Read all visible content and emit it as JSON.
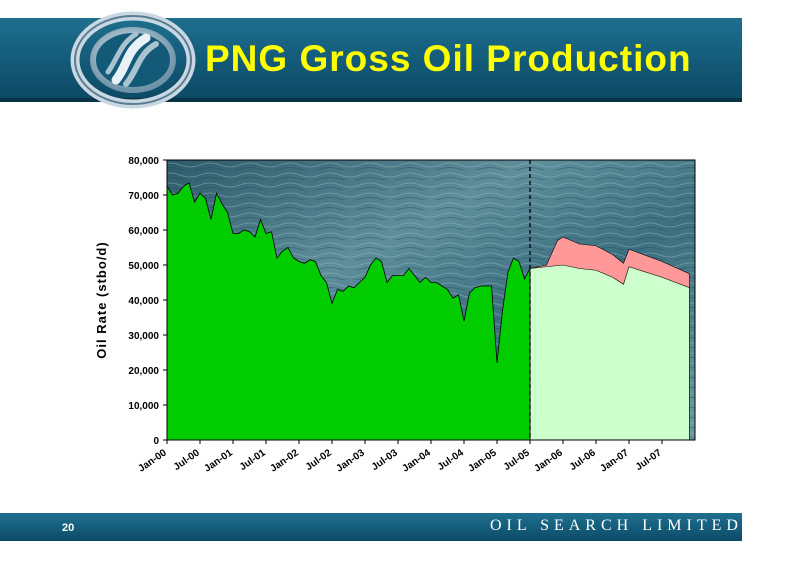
{
  "header": {
    "title": "PNG Gross Oil Production"
  },
  "footer": {
    "page_number": "20",
    "company": "OIL SEARCH LIMITED"
  },
  "colors": {
    "header_bg": "#135a78",
    "title": "#ffff00",
    "actual_fill": "#00cc00",
    "forecast_fill": "#ccffcc",
    "forecast_upside_fill": "#ff9999"
  },
  "chart_data": {
    "type": "area",
    "title": "",
    "xlabel": "",
    "ylabel": "Oil Rate (stbo/d)",
    "ylim": [
      0,
      80000
    ],
    "yticks": [
      0,
      10000,
      20000,
      30000,
      40000,
      50000,
      60000,
      70000,
      80000
    ],
    "ytick_labels": [
      "0",
      "10,000",
      "20,000",
      "30,000",
      "40,000",
      "50,000",
      "60,000",
      "70,000",
      "80,000"
    ],
    "xlim": [
      "Jan-00",
      "Dec-07"
    ],
    "xtick_labels": [
      "Jan-00",
      "Jul-00",
      "Jan-01",
      "Jul-01",
      "Jan-02",
      "Jul-02",
      "Jan-03",
      "Jul-03",
      "Jan-04",
      "Jul-04",
      "Jan-05",
      "Jul-05",
      "Jan-06",
      "Jul-06",
      "Jan-07",
      "Jul-07"
    ],
    "divider_at": "Jul-05",
    "background": "ocean-texture",
    "series": [
      {
        "kind": "actual",
        "color": "#00cc00",
        "x": [
          "Jan-00",
          "Feb-00",
          "Mar-00",
          "Apr-00",
          "May-00",
          "Jun-00",
          "Jul-00",
          "Aug-00",
          "Sep-00",
          "Oct-00",
          "Nov-00",
          "Dec-00",
          "Jan-01",
          "Feb-01",
          "Mar-01",
          "Apr-01",
          "May-01",
          "Jun-01",
          "Jul-01",
          "Aug-01",
          "Sep-01",
          "Oct-01",
          "Nov-01",
          "Dec-01",
          "Jan-02",
          "Feb-02",
          "Mar-02",
          "Apr-02",
          "May-02",
          "Jun-02",
          "Jul-02",
          "Aug-02",
          "Sep-02",
          "Oct-02",
          "Nov-02",
          "Dec-02",
          "Jan-03",
          "Feb-03",
          "Mar-03",
          "Apr-03",
          "May-03",
          "Jun-03",
          "Jul-03",
          "Aug-03",
          "Sep-03",
          "Oct-03",
          "Nov-03",
          "Dec-03",
          "Jan-04",
          "Feb-04",
          "Mar-04",
          "Apr-04",
          "May-04",
          "Jun-04",
          "Jul-04",
          "Aug-04",
          "Sep-04",
          "Oct-04",
          "Nov-04",
          "Dec-04",
          "Jan-05",
          "Feb-05",
          "Mar-05",
          "Apr-05",
          "May-05",
          "Jun-05",
          "Jul-05"
        ],
        "values": [
          72500,
          70000,
          70500,
          72500,
          73500,
          68000,
          70500,
          69000,
          63000,
          70500,
          67500,
          65000,
          59000,
          59000,
          60000,
          59500,
          58000,
          63000,
          59000,
          59500,
          52000,
          54000,
          55000,
          52000,
          51000,
          50500,
          51500,
          51000,
          47000,
          45000,
          39000,
          43000,
          42500,
          44000,
          43500,
          45000,
          46500,
          50000,
          52000,
          51000,
          45000,
          47000,
          47000,
          47000,
          49000,
          47000,
          45000,
          46500,
          45000,
          45000,
          44000,
          43000,
          40500,
          41500,
          34000,
          42000,
          43500,
          44000,
          44000,
          44000,
          22000,
          37000,
          48000,
          52000,
          51000,
          46000,
          49000
        ]
      },
      {
        "kind": "forecast-base",
        "color": "#ccffcc",
        "x": [
          "Jul-05",
          "Oct-05",
          "Jan-06",
          "Apr-06",
          "Jul-06",
          "Oct-06",
          "Dec-06",
          "Jan-07",
          "Jul-07",
          "Dec-07"
        ],
        "values": [
          49000,
          49500,
          50000,
          49000,
          48500,
          46500,
          44500,
          49500,
          46500,
          43500
        ]
      },
      {
        "kind": "forecast-upside",
        "color": "#ff9999",
        "x": [
          "Jul-05",
          "Oct-05",
          "Dec-05",
          "Jan-06",
          "Apr-06",
          "Jul-06",
          "Oct-06",
          "Dec-06",
          "Jan-07",
          "Jul-07",
          "Dec-07"
        ],
        "values": [
          49000,
          50000,
          57000,
          58000,
          56000,
          55500,
          53000,
          50500,
          54500,
          51000,
          47500
        ]
      }
    ]
  }
}
